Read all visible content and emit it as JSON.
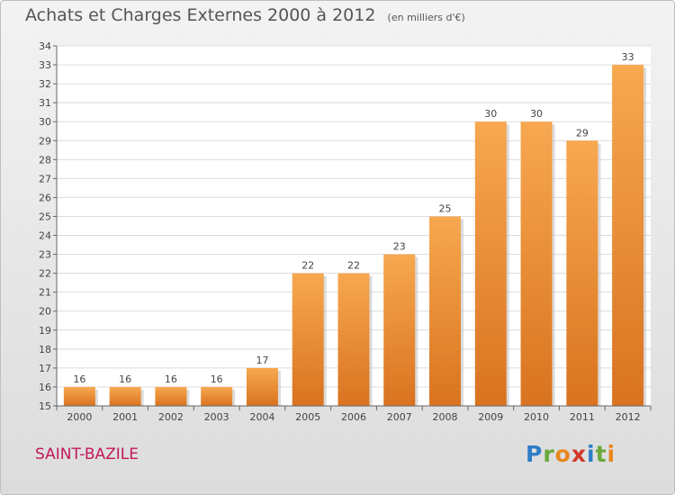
{
  "header": {
    "title": "Achats et Charges Externes 2000 à 2012",
    "subtitle": "(en milliers d'€)"
  },
  "footer": {
    "commune": "SAINT-BAZILE",
    "logo_letters": [
      "P",
      "r",
      "o",
      "x",
      "i",
      "t",
      "i"
    ],
    "logo_colors": [
      "#2e7dc7",
      "#6aa83a",
      "#e8871e",
      "#d03a2c",
      "#2e7dc7",
      "#6aa83a",
      "#e8871e"
    ]
  },
  "chart_data": {
    "type": "bar",
    "categories": [
      "2000",
      "2001",
      "2002",
      "2003",
      "2004",
      "2005",
      "2006",
      "2007",
      "2008",
      "2009",
      "2010",
      "2011",
      "2012"
    ],
    "values": [
      16,
      16,
      16,
      16,
      17,
      22,
      22,
      23,
      25,
      30,
      30,
      29,
      33
    ],
    "data_labels": [
      "16",
      "16",
      "16",
      "16",
      "17",
      "22",
      "22",
      "23",
      "25",
      "30",
      "30",
      "29",
      "33"
    ],
    "ylim": [
      15,
      34
    ],
    "yticks": [
      "15",
      "16",
      "17",
      "18",
      "19",
      "20",
      "21",
      "22",
      "23",
      "24",
      "25",
      "26",
      "27",
      "28",
      "29",
      "30",
      "31",
      "32",
      "33",
      "34"
    ],
    "grid": true,
    "bar_color_top": "#f7a850",
    "bar_color_bottom": "#d9731f",
    "title": "Achats et Charges Externes 2000 à 2012",
    "xlabel": "",
    "ylabel": ""
  }
}
